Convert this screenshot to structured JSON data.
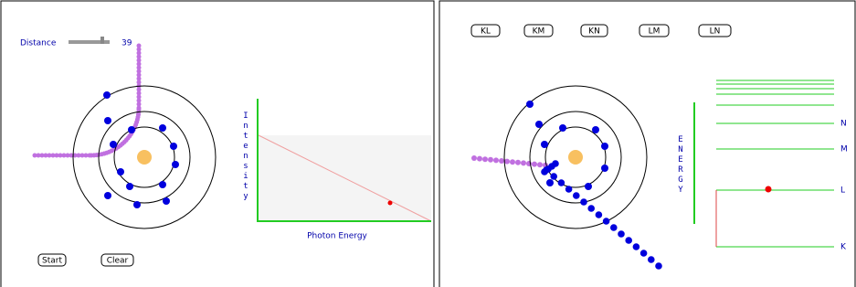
{
  "left_panel": {
    "slider": {
      "label": "Distance",
      "value": 39
    },
    "buttons": [
      "Start",
      "Clear"
    ],
    "plot": {
      "y_label": "Intensity",
      "x_label": "Photon Energy"
    }
  },
  "right_panel": {
    "buttons": [
      "KL",
      "KM",
      "KN",
      "LM",
      "LN"
    ],
    "energy_label": "ENERGY",
    "levels": [
      "N",
      "M",
      "L",
      "K"
    ]
  }
}
